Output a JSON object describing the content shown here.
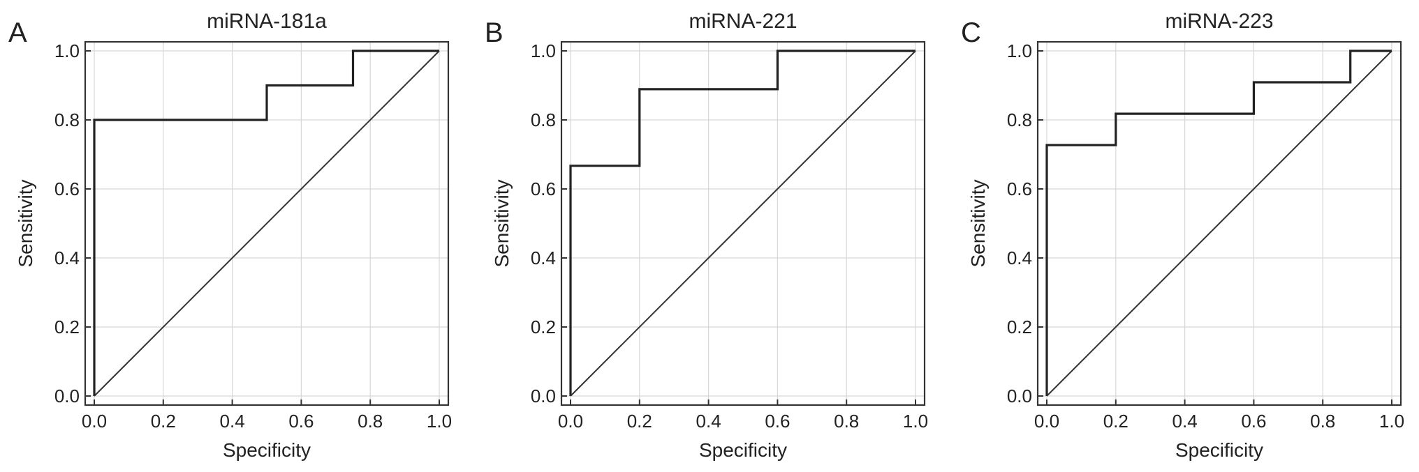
{
  "chart_data": [
    {
      "type": "line",
      "panel_label": "A",
      "title": "miRNA-181a",
      "xlabel": "Specificity",
      "ylabel": "Sensitivity",
      "xlim": [
        0,
        1
      ],
      "ylim": [
        0,
        1
      ],
      "xticks": [
        "0.0",
        "0.2",
        "0.4",
        "0.6",
        "0.8",
        "1.0"
      ],
      "yticks": [
        "0.0",
        "0.2",
        "0.4",
        "0.6",
        "0.8",
        "1.0"
      ],
      "grid": true,
      "series": [
        {
          "x": [
            0,
            0,
            0.5,
            0.5,
            0.75,
            0.75,
            1.0
          ],
          "y": [
            0,
            0.8,
            0.8,
            0.9,
            0.9,
            1.0,
            1.0
          ]
        },
        {
          "x": [
            0,
            1
          ],
          "y": [
            0,
            1
          ]
        }
      ]
    },
    {
      "type": "line",
      "panel_label": "B",
      "title": "miRNA-221",
      "xlabel": "Specificity",
      "ylabel": "Sensitivity",
      "xlim": [
        0,
        1
      ],
      "ylim": [
        0,
        1
      ],
      "xticks": [
        "0.0",
        "0.2",
        "0.4",
        "0.6",
        "0.8",
        "1.0"
      ],
      "yticks": [
        "0.0",
        "0.2",
        "0.4",
        "0.6",
        "0.8",
        "1.0"
      ],
      "grid": true,
      "series": [
        {
          "x": [
            0,
            0,
            0.2,
            0.2,
            0.6,
            0.6,
            1.0
          ],
          "y": [
            0,
            0.667,
            0.667,
            0.889,
            0.889,
            1.0,
            1.0
          ]
        },
        {
          "x": [
            0,
            1
          ],
          "y": [
            0,
            1
          ]
        }
      ]
    },
    {
      "type": "line",
      "panel_label": "C",
      "title": "miRNA-223",
      "xlabel": "Specificity",
      "ylabel": "Sensitivity",
      "xlim": [
        0,
        1
      ],
      "ylim": [
        0,
        1
      ],
      "xticks": [
        "0.0",
        "0.2",
        "0.4",
        "0.6",
        "0.8",
        "1.0"
      ],
      "yticks": [
        "0.0",
        "0.2",
        "0.4",
        "0.6",
        "0.8",
        "1.0"
      ],
      "grid": true,
      "series": [
        {
          "x": [
            0,
            0,
            0.2,
            0.2,
            0.6,
            0.6,
            0.88,
            0.88,
            1.0
          ],
          "y": [
            0,
            0.727,
            0.727,
            0.818,
            0.818,
            0.909,
            0.909,
            1.0,
            1.0
          ]
        },
        {
          "x": [
            0,
            1
          ],
          "y": [
            0,
            1
          ]
        }
      ]
    }
  ]
}
